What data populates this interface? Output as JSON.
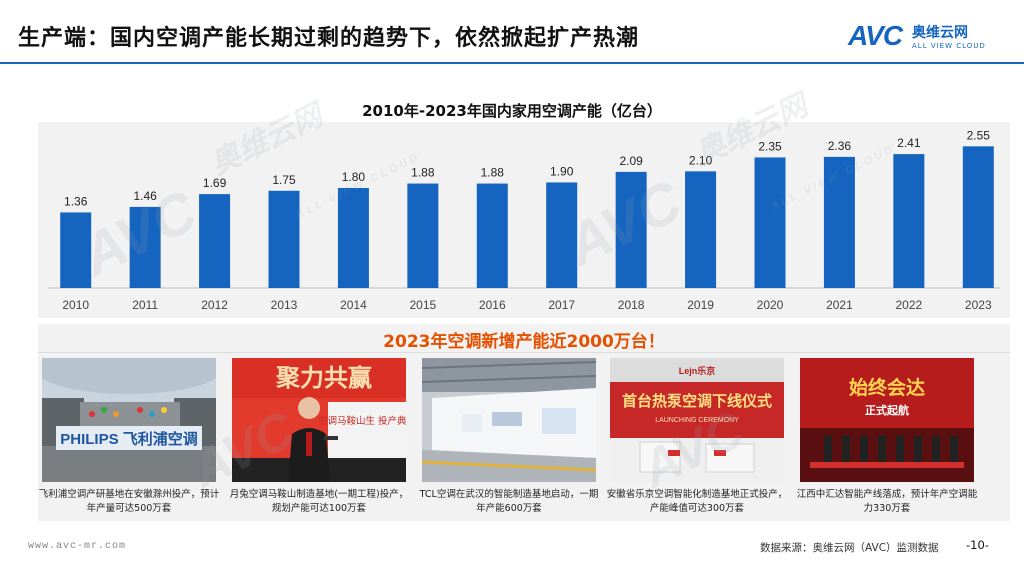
{
  "header": {
    "title": "生产端：国内空调产能长期过剩的趋势下，依然掀起扩产热潮",
    "logo_mark": "AVC",
    "logo_cn": "奥维云网",
    "logo_en": "ALL VIEW CLOUD"
  },
  "chart_data": {
    "type": "bar",
    "title": "2010年-2023年国内家用空调产能（亿台）",
    "categories": [
      "2010",
      "2011",
      "2012",
      "2013",
      "2014",
      "2015",
      "2016",
      "2017",
      "2018",
      "2019",
      "2020",
      "2021",
      "2022",
      "2023"
    ],
    "values": [
      1.36,
      1.46,
      1.69,
      1.75,
      1.8,
      1.88,
      1.88,
      1.9,
      2.09,
      2.1,
      2.35,
      2.36,
      2.41,
      2.55
    ],
    "value_labels": [
      "1.36",
      "1.46",
      "1.69",
      "1.75",
      "1.80",
      "1.88",
      "1.88",
      "1.90",
      "2.09",
      "2.10",
      "2.35",
      "2.36",
      "2.41",
      "2.55"
    ],
    "xlabel": "",
    "ylabel": "",
    "ylim": [
      0,
      2.7
    ],
    "bar_color": "#1565c0",
    "grid": false
  },
  "banner": {
    "text": "2023年空调新增产能近2000万台！"
  },
  "photos": [
    {
      "caption": "飞利浦空调产研基地在安徽滁州投产，预计年产量可达500万套",
      "sign_text": "PHILIPS 飞利浦空调"
    },
    {
      "caption": "月兔空调马鞍山制造基地(一期工程)投产，规划产能可达100万套",
      "banner_text": "聚力共赢",
      "sub_text": "空调马鞍山生 投产典礼"
    },
    {
      "caption": "TCL空调在武汉的智能制造基地启动，一期年产能600万套"
    },
    {
      "caption": "安徽省乐京空调智能化制造基地正式投产，产能峰值可达300万套",
      "brand": "Lejn乐京",
      "banner_text": "首台热泵空调下线仪式",
      "sub_text": "LAUNCHING CEREMONY"
    },
    {
      "caption": "江西中汇达智能产线落成，预计年产空调能力330万套",
      "banner_text": "始终会达",
      "sub_text": "正式起航"
    }
  ],
  "footer": {
    "url": "www.avc-mr.com",
    "source": "数据来源：奥维云网（AVC）监测数据",
    "page": "-10-"
  },
  "watermark": {
    "mark": "AVC",
    "cn": "奥维云网",
    "en": "ALL VIEW CLOUD"
  },
  "colors": {
    "brand": "#1565c0",
    "banner_orange": "#e65100",
    "panel_bg": "#f2f2f2"
  }
}
